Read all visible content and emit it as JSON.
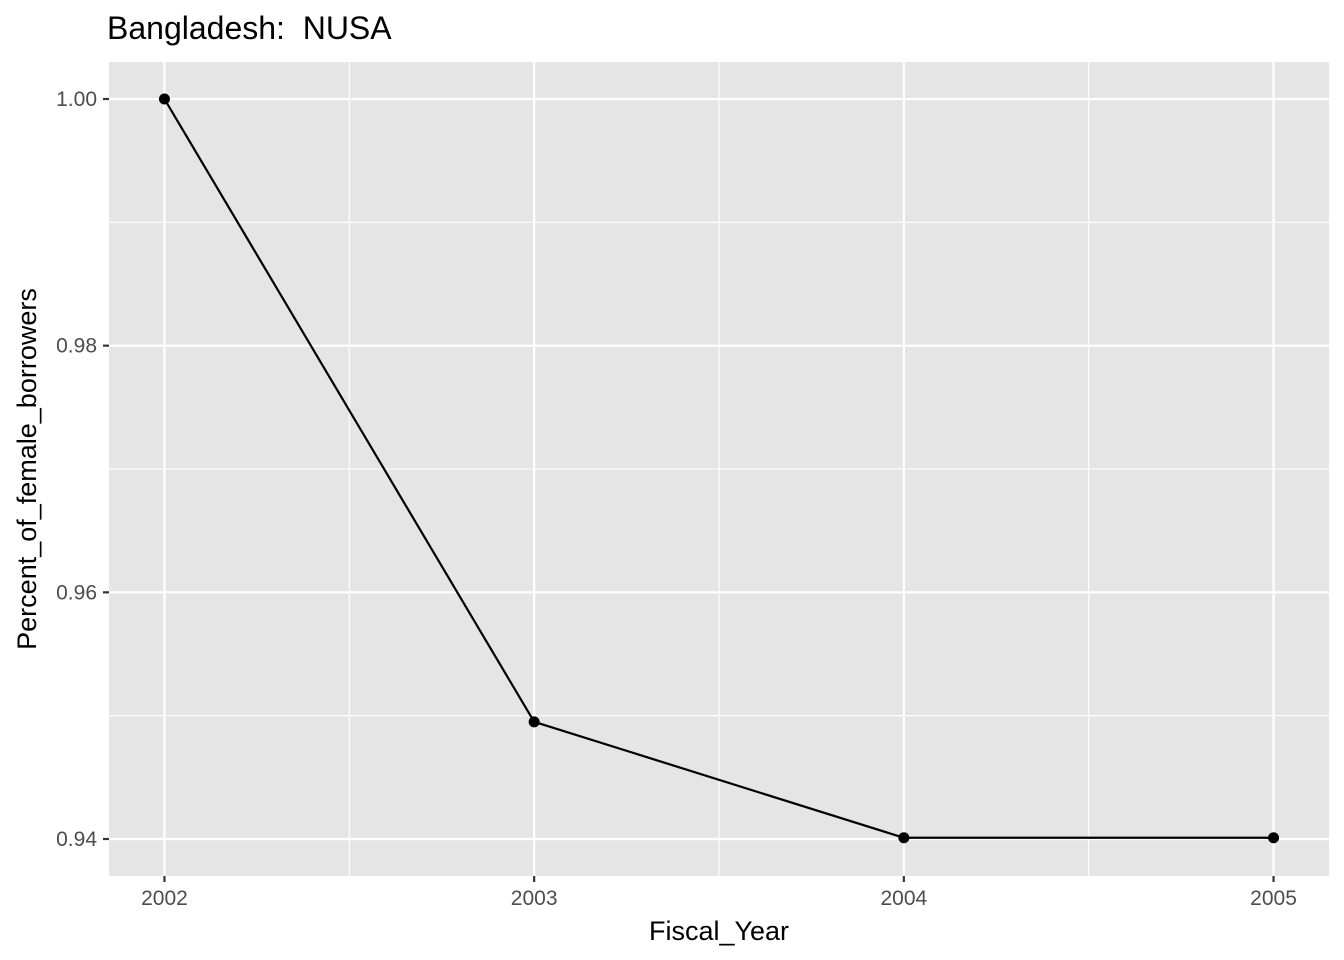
{
  "chart_data": {
    "type": "line",
    "title": "Bangladesh:  NUSA",
    "xlabel": "Fiscal_Year",
    "ylabel": "Percent_of_female_borrowers",
    "x": [
      2002,
      2003,
      2004,
      2005
    ],
    "y": [
      1.0,
      0.9495,
      0.9401,
      0.9401
    ],
    "x_ticks": [
      "2002",
      "2003",
      "2004",
      "2005"
    ],
    "y_ticks": [
      "0.94",
      "0.96",
      "0.98",
      "1.00"
    ],
    "xlim": [
      2001.85,
      2005.15
    ],
    "ylim": [
      0.937,
      1.003
    ],
    "grid": true,
    "panel_background": "#e5e5e5",
    "grid_color": "#ffffff",
    "line_color": "#000000",
    "point_color": "#000000"
  }
}
